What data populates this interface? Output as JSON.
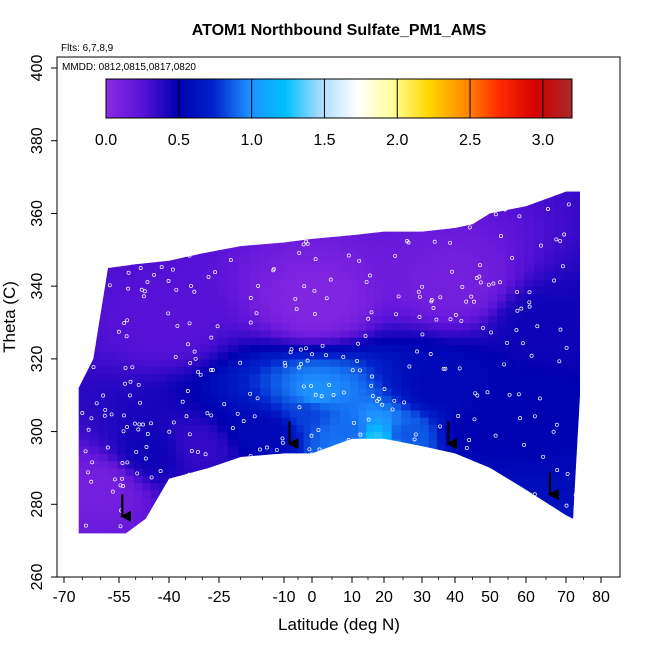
{
  "chart_data": {
    "type": "heatmap",
    "title": "ATOM1 Northbound Sulfate_PM1_AMS",
    "annotations": {
      "flights": "Flts: 6,7,8,9",
      "dates": "MMDD: 0812,0815,0817,0820"
    },
    "xlabel": "Latitude (deg N)",
    "ylabel": "Theta (C)",
    "xlim": [
      -70,
      80
    ],
    "ylim": [
      260,
      400
    ],
    "x_ticks": [
      -70,
      -55,
      -40,
      -25,
      -10,
      0,
      10,
      20,
      30,
      40,
      50,
      60,
      70,
      80
    ],
    "x_tick_labels": [
      "-70",
      "-55",
      "-40",
      "-25",
      "-10",
      "0",
      "10",
      "20",
      "30",
      "40",
      "50",
      "60",
      "70",
      "80"
    ],
    "y_ticks": [
      260,
      280,
      300,
      320,
      340,
      360,
      380,
      400
    ],
    "y_tick_labels": [
      "260",
      "280",
      "300",
      "320",
      "340",
      "360",
      "380",
      "400"
    ],
    "colorbar": {
      "range": [
        0.0,
        3.2
      ],
      "ticks": [
        0.0,
        0.5,
        1.0,
        1.5,
        2.0,
        2.5,
        3.0
      ],
      "tick_labels": [
        "0.0",
        "0.5",
        "1.0",
        "1.5",
        "2.0",
        "2.5",
        "3.0"
      ],
      "colors": [
        "#8b2be2",
        "#5a12d8",
        "#0000b0",
        "#0022cc",
        "#1e90ff",
        "#00bfff",
        "#aadcff",
        "#ffffff",
        "#ffff99",
        "#ffd700",
        "#ff8c00",
        "#ff2a00",
        "#d40000",
        "#a52a2a"
      ]
    },
    "arrows": [
      {
        "lat": -54,
        "theta": 280
      },
      {
        "lat": -8,
        "theta": 300
      },
      {
        "lat": 38,
        "theta": 300
      },
      {
        "lat": 66,
        "theta": 286
      }
    ],
    "data_envelope": {
      "lower": [
        [
          -66,
          272
        ],
        [
          -53,
          272
        ],
        [
          -47,
          276
        ],
        [
          -40,
          287
        ],
        [
          -28,
          290
        ],
        [
          -20,
          293
        ],
        [
          -10,
          294
        ],
        [
          0,
          294
        ],
        [
          10,
          298
        ],
        [
          20,
          298
        ],
        [
          30,
          296
        ],
        [
          40,
          294
        ],
        [
          50,
          290
        ],
        [
          60,
          284
        ],
        [
          70,
          277
        ],
        [
          72,
          276
        ]
      ],
      "upper": [
        [
          -66,
          312
        ],
        [
          -62,
          320
        ],
        [
          -58,
          345
        ],
        [
          -50,
          346
        ],
        [
          -40,
          347
        ],
        [
          -30,
          349
        ],
        [
          -20,
          351
        ],
        [
          -10,
          352
        ],
        [
          0,
          353
        ],
        [
          10,
          354
        ],
        [
          20,
          355
        ],
        [
          30,
          355
        ],
        [
          40,
          356
        ],
        [
          45,
          357
        ],
        [
          50,
          360
        ],
        [
          60,
          362
        ],
        [
          70,
          366
        ],
        [
          74,
          366
        ],
        [
          74,
          310
        ]
      ]
    },
    "field_centers": [
      {
        "lat": -60,
        "theta": 285,
        "value": 0.12
      },
      {
        "lat": -45,
        "theta": 294,
        "value": 0.45
      },
      {
        "lat": -30,
        "theta": 296,
        "value": 0.35
      },
      {
        "lat": -15,
        "theta": 300,
        "value": 0.55
      },
      {
        "lat": -2,
        "theta": 306,
        "value": 0.8
      },
      {
        "lat": 0,
        "theta": 310,
        "value": 1.0
      },
      {
        "lat": 10,
        "theta": 300,
        "value": 0.9
      },
      {
        "lat": 18,
        "theta": 298,
        "value": 1.3
      },
      {
        "lat": 25,
        "theta": 299,
        "value": 0.85
      },
      {
        "lat": 35,
        "theta": 312,
        "value": 0.55
      },
      {
        "lat": 45,
        "theta": 300,
        "value": 0.5
      },
      {
        "lat": 55,
        "theta": 305,
        "value": 0.5
      },
      {
        "lat": 65,
        "theta": 330,
        "value": 0.45
      },
      {
        "lat": 0,
        "theta": 335,
        "value": 0.05
      },
      {
        "lat": -40,
        "theta": 330,
        "value": 0.25
      },
      {
        "lat": 40,
        "theta": 340,
        "value": 0.12
      }
    ]
  }
}
